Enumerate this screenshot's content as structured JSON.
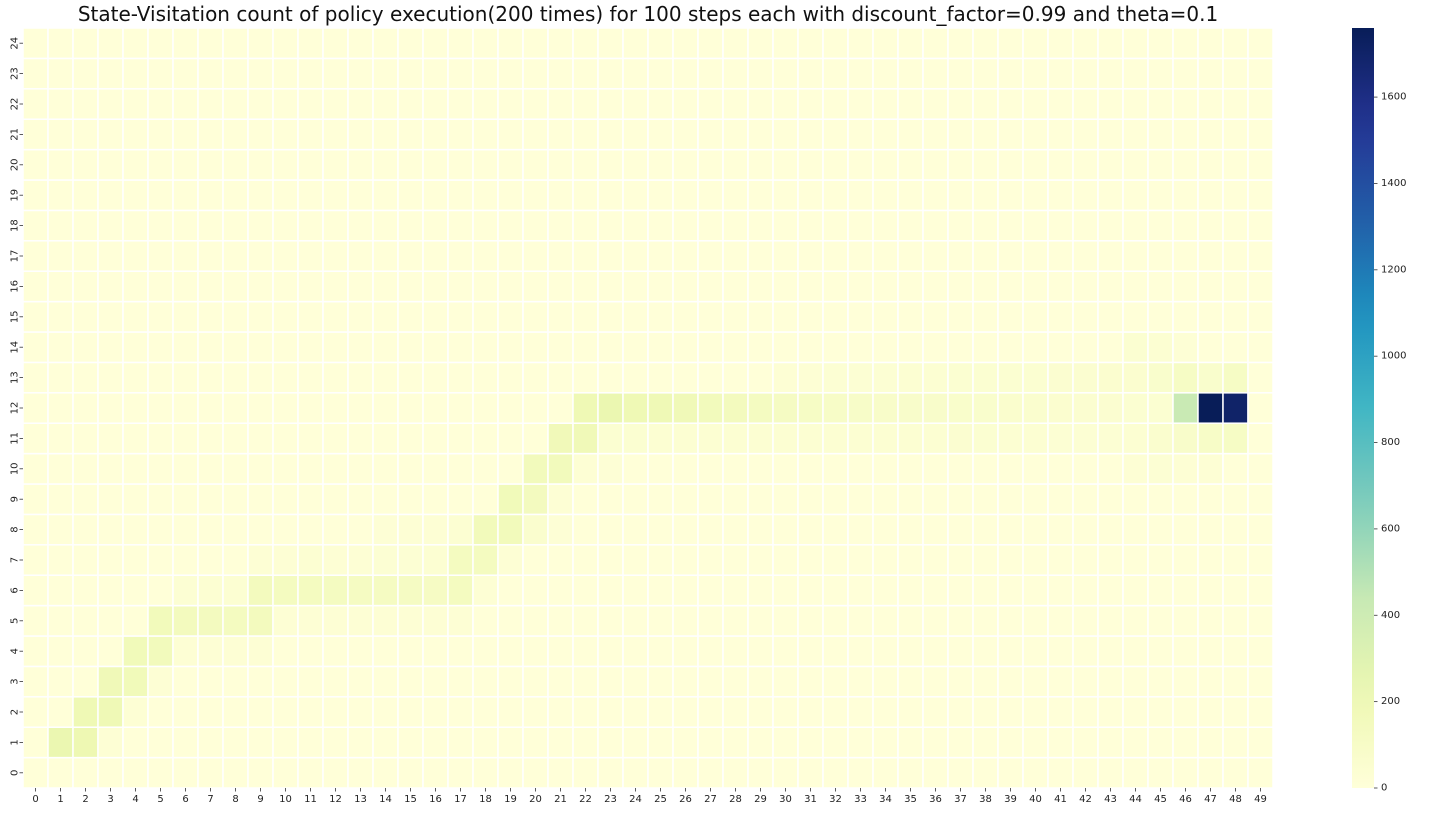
{
  "chart_data": {
    "type": "heatmap",
    "title": "State-Visitation count of policy execution(200 times) for 100 steps each with discount_factor=0.99 and theta=0.1",
    "xlabel": "",
    "ylabel": "",
    "x_ticks": [
      0,
      1,
      2,
      3,
      4,
      5,
      6,
      7,
      8,
      9,
      10,
      11,
      12,
      13,
      14,
      15,
      16,
      17,
      18,
      19,
      20,
      21,
      22,
      23,
      24,
      25,
      26,
      27,
      28,
      29,
      30,
      31,
      32,
      33,
      34,
      35,
      36,
      37,
      38,
      39,
      40,
      41,
      42,
      43,
      44,
      45,
      46,
      47,
      48,
      49
    ],
    "y_ticks": [
      0,
      1,
      2,
      3,
      4,
      5,
      6,
      7,
      8,
      9,
      10,
      11,
      12,
      13,
      14,
      15,
      16,
      17,
      18,
      19,
      20,
      21,
      22,
      23,
      24
    ],
    "y_order": "bottom-to-top",
    "default_value": 5,
    "colorbar": {
      "min": 0,
      "max": 1760,
      "ticks": [
        0,
        200,
        400,
        600,
        800,
        1000,
        1200,
        1400,
        1600
      ],
      "colorscale": "YlGnBu"
    },
    "cells": [
      {
        "x": 1,
        "y": 1,
        "v": 230
      },
      {
        "x": 2,
        "y": 1,
        "v": 210
      },
      {
        "x": 2,
        "y": 2,
        "v": 200
      },
      {
        "x": 3,
        "y": 2,
        "v": 190
      },
      {
        "x": 3,
        "y": 3,
        "v": 180
      },
      {
        "x": 4,
        "y": 3,
        "v": 170
      },
      {
        "x": 4,
        "y": 4,
        "v": 170
      },
      {
        "x": 5,
        "y": 4,
        "v": 160
      },
      {
        "x": 5,
        "y": 5,
        "v": 165
      },
      {
        "x": 6,
        "y": 5,
        "v": 150
      },
      {
        "x": 7,
        "y": 5,
        "v": 145
      },
      {
        "x": 8,
        "y": 5,
        "v": 140
      },
      {
        "x": 9,
        "y": 5,
        "v": 150
      },
      {
        "x": 9,
        "y": 6,
        "v": 150
      },
      {
        "x": 10,
        "y": 6,
        "v": 140
      },
      {
        "x": 11,
        "y": 6,
        "v": 135
      },
      {
        "x": 12,
        "y": 6,
        "v": 130
      },
      {
        "x": 13,
        "y": 6,
        "v": 125
      },
      {
        "x": 14,
        "y": 6,
        "v": 125
      },
      {
        "x": 15,
        "y": 6,
        "v": 120
      },
      {
        "x": 16,
        "y": 6,
        "v": 115
      },
      {
        "x": 17,
        "y": 6,
        "v": 140
      },
      {
        "x": 17,
        "y": 7,
        "v": 140
      },
      {
        "x": 18,
        "y": 7,
        "v": 140
      },
      {
        "x": 18,
        "y": 8,
        "v": 165
      },
      {
        "x": 19,
        "y": 8,
        "v": 165
      },
      {
        "x": 19,
        "y": 9,
        "v": 170
      },
      {
        "x": 20,
        "y": 9,
        "v": 145
      },
      {
        "x": 20,
        "y": 10,
        "v": 160
      },
      {
        "x": 21,
        "y": 10,
        "v": 160
      },
      {
        "x": 21,
        "y": 11,
        "v": 175
      },
      {
        "x": 22,
        "y": 11,
        "v": 180
      },
      {
        "x": 22,
        "y": 12,
        "v": 200
      },
      {
        "x": 23,
        "y": 12,
        "v": 230
      },
      {
        "x": 24,
        "y": 12,
        "v": 200
      },
      {
        "x": 25,
        "y": 12,
        "v": 190
      },
      {
        "x": 26,
        "y": 12,
        "v": 180
      },
      {
        "x": 27,
        "y": 12,
        "v": 160
      },
      {
        "x": 28,
        "y": 12,
        "v": 150
      },
      {
        "x": 29,
        "y": 12,
        "v": 130
      },
      {
        "x": 30,
        "y": 12,
        "v": 120
      },
      {
        "x": 31,
        "y": 12,
        "v": 110
      },
      {
        "x": 32,
        "y": 12,
        "v": 100
      },
      {
        "x": 33,
        "y": 12,
        "v": 95
      },
      {
        "x": 34,
        "y": 12,
        "v": 90
      },
      {
        "x": 35,
        "y": 12,
        "v": 85
      },
      {
        "x": 36,
        "y": 12,
        "v": 80
      },
      {
        "x": 37,
        "y": 12,
        "v": 75
      },
      {
        "x": 38,
        "y": 12,
        "v": 70
      },
      {
        "x": 39,
        "y": 12,
        "v": 65
      },
      {
        "x": 40,
        "y": 12,
        "v": 60
      },
      {
        "x": 41,
        "y": 12,
        "v": 55
      },
      {
        "x": 42,
        "y": 12,
        "v": 50
      },
      {
        "x": 43,
        "y": 12,
        "v": 50
      },
      {
        "x": 44,
        "y": 12,
        "v": 45
      },
      {
        "x": 45,
        "y": 12,
        "v": 45
      },
      {
        "x": 46,
        "y": 12,
        "v": 430
      },
      {
        "x": 47,
        "y": 12,
        "v": 1760
      },
      {
        "x": 48,
        "y": 12,
        "v": 1700
      },
      {
        "x": 23,
        "y": 11,
        "v": 45
      },
      {
        "x": 24,
        "y": 11,
        "v": 45
      },
      {
        "x": 25,
        "y": 11,
        "v": 40
      },
      {
        "x": 26,
        "y": 11,
        "v": 40
      },
      {
        "x": 27,
        "y": 11,
        "v": 40
      },
      {
        "x": 28,
        "y": 11,
        "v": 40
      },
      {
        "x": 29,
        "y": 11,
        "v": 40
      },
      {
        "x": 30,
        "y": 11,
        "v": 40
      },
      {
        "x": 31,
        "y": 11,
        "v": 40
      },
      {
        "x": 32,
        "y": 11,
        "v": 40
      },
      {
        "x": 33,
        "y": 11,
        "v": 40
      },
      {
        "x": 34,
        "y": 11,
        "v": 40
      },
      {
        "x": 35,
        "y": 11,
        "v": 40
      },
      {
        "x": 36,
        "y": 11,
        "v": 40
      },
      {
        "x": 37,
        "y": 11,
        "v": 50
      },
      {
        "x": 38,
        "y": 11,
        "v": 45
      },
      {
        "x": 39,
        "y": 11,
        "v": 40
      },
      {
        "x": 40,
        "y": 11,
        "v": 40
      },
      {
        "x": 41,
        "y": 11,
        "v": 35
      },
      {
        "x": 42,
        "y": 11,
        "v": 35
      },
      {
        "x": 43,
        "y": 11,
        "v": 35
      },
      {
        "x": 44,
        "y": 11,
        "v": 40
      },
      {
        "x": 45,
        "y": 11,
        "v": 60
      },
      {
        "x": 46,
        "y": 11,
        "v": 80
      },
      {
        "x": 47,
        "y": 11,
        "v": 100
      },
      {
        "x": 48,
        "y": 11,
        "v": 110
      },
      {
        "x": 30,
        "y": 13,
        "v": 30
      },
      {
        "x": 31,
        "y": 13,
        "v": 30
      },
      {
        "x": 32,
        "y": 13,
        "v": 35
      },
      {
        "x": 33,
        "y": 13,
        "v": 35
      },
      {
        "x": 34,
        "y": 13,
        "v": 35
      },
      {
        "x": 35,
        "y": 13,
        "v": 40
      },
      {
        "x": 36,
        "y": 13,
        "v": 40
      },
      {
        "x": 37,
        "y": 13,
        "v": 45
      },
      {
        "x": 38,
        "y": 13,
        "v": 45
      },
      {
        "x": 39,
        "y": 13,
        "v": 45
      },
      {
        "x": 40,
        "y": 13,
        "v": 45
      },
      {
        "x": 41,
        "y": 13,
        "v": 50
      },
      {
        "x": 42,
        "y": 13,
        "v": 50
      },
      {
        "x": 43,
        "y": 13,
        "v": 55
      },
      {
        "x": 44,
        "y": 13,
        "v": 55
      },
      {
        "x": 45,
        "y": 13,
        "v": 70
      },
      {
        "x": 46,
        "y": 13,
        "v": 110
      },
      {
        "x": 47,
        "y": 13,
        "v": 70
      },
      {
        "x": 48,
        "y": 13,
        "v": 110
      },
      {
        "x": 44,
        "y": 14,
        "v": 45
      },
      {
        "x": 45,
        "y": 14,
        "v": 40
      },
      {
        "x": 46,
        "y": 14,
        "v": 20
      },
      {
        "x": 44,
        "y": 10,
        "v": 30
      },
      {
        "x": 45,
        "y": 10,
        "v": 35
      },
      {
        "x": 46,
        "y": 10,
        "v": 30
      },
      {
        "x": 47,
        "y": 10,
        "v": 30
      },
      {
        "x": 13,
        "y": 7,
        "v": 30
      },
      {
        "x": 14,
        "y": 7,
        "v": 35
      },
      {
        "x": 15,
        "y": 7,
        "v": 35
      },
      {
        "x": 16,
        "y": 7,
        "v": 40
      },
      {
        "x": 14,
        "y": 8,
        "v": 20
      },
      {
        "x": 15,
        "y": 8,
        "v": 25
      },
      {
        "x": 16,
        "y": 8,
        "v": 30
      },
      {
        "x": 17,
        "y": 8,
        "v": 40
      },
      {
        "x": 20,
        "y": 8,
        "v": 60
      },
      {
        "x": 21,
        "y": 9,
        "v": 30
      },
      {
        "x": 21,
        "y": 8,
        "v": 20
      },
      {
        "x": 6,
        "y": 4,
        "v": 30
      },
      {
        "x": 7,
        "y": 4,
        "v": 30
      },
      {
        "x": 8,
        "y": 4,
        "v": 25
      },
      {
        "x": 9,
        "y": 4,
        "v": 25
      },
      {
        "x": 3,
        "y": 1,
        "v": 25
      },
      {
        "x": 4,
        "y": 2,
        "v": 25
      },
      {
        "x": 5,
        "y": 3,
        "v": 25
      },
      {
        "x": 10,
        "y": 5,
        "v": 25
      },
      {
        "x": 11,
        "y": 5,
        "v": 25
      },
      {
        "x": 12,
        "y": 5,
        "v": 25
      },
      {
        "x": 13,
        "y": 5,
        "v": 25
      },
      {
        "x": 14,
        "y": 5,
        "v": 25
      },
      {
        "x": 15,
        "y": 5,
        "v": 25
      },
      {
        "x": 16,
        "y": 5,
        "v": 25
      },
      {
        "x": 17,
        "y": 5,
        "v": 25
      },
      {
        "x": 18,
        "y": 6,
        "v": 25
      },
      {
        "x": 19,
        "y": 7,
        "v": 25
      },
      {
        "x": 22,
        "y": 10,
        "v": 25
      },
      {
        "x": 23,
        "y": 10,
        "v": 20
      },
      {
        "x": 6,
        "y": 6,
        "v": 35
      },
      {
        "x": 7,
        "y": 6,
        "v": 40
      },
      {
        "x": 8,
        "y": 6,
        "v": 40
      },
      {
        "x": 9,
        "y": 7,
        "v": 25
      },
      {
        "x": 10,
        "y": 7,
        "v": 30
      },
      {
        "x": 11,
        "y": 7,
        "v": 40
      },
      {
        "x": 12,
        "y": 7,
        "v": 30
      }
    ]
  }
}
